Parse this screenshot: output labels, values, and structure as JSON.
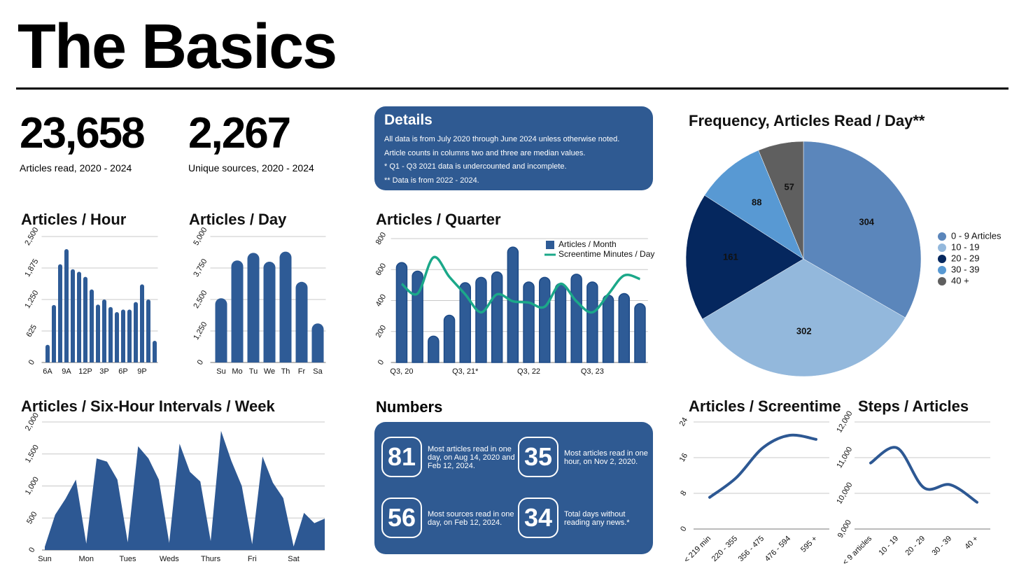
{
  "header": {
    "title": "The Basics"
  },
  "stats": [
    {
      "value": "23,658",
      "label": "Articles read, 2020 - 2024"
    },
    {
      "value": "2,267",
      "label": "Unique sources, 2020 - 2024"
    }
  ],
  "details": {
    "title": "Details",
    "lines": [
      "All data is from July 2020 through June 2024 unless otherwise noted.",
      "Article counts in columns two and three are median values.",
      "* Q1 - Q3 2021 data is undercounted and incomplete.",
      "** Data is from 2022 - 2024."
    ]
  },
  "numbers": {
    "title": "Numbers",
    "items": [
      {
        "value": 81,
        "text": "Most articles read in one day, on Aug 14, 2020 and Feb 12, 2024."
      },
      {
        "value": 35,
        "text": "Most articles read in one hour, on Nov 2, 2020."
      },
      {
        "value": 56,
        "text": "Most sources read in one day, on Feb 12, 2024."
      },
      {
        "value": 34,
        "text": "Total days without reading any news.*"
      }
    ]
  },
  "chart_data": [
    {
      "type": "bar",
      "title": "Articles / Hour",
      "color": "#2e5b96",
      "grid": true,
      "categories": [
        "6A",
        null,
        null,
        "9A",
        null,
        null,
        "12P",
        null,
        null,
        "3P",
        null,
        null,
        "6P",
        null,
        null,
        "9P",
        null,
        null
      ],
      "values": [
        350,
        1140,
        1950,
        2250,
        1850,
        1800,
        1700,
        1450,
        1150,
        1250,
        1100,
        1000,
        1050,
        1050,
        1200,
        1550,
        1250,
        430
      ],
      "ylim": [
        0,
        2500
      ],
      "yticks": [
        0,
        625,
        {
          "value": 1250,
          "label": "1,250"
        },
        {
          "value": 1875,
          "label": "1,875"
        },
        {
          "value": 2500,
          "label": "2,500"
        }
      ]
    },
    {
      "type": "bar",
      "title": "Articles / Day",
      "color": "#2e5b96",
      "grid": true,
      "categories": [
        "Su",
        "Mo",
        "Tu",
        "We",
        "Th",
        "Fr",
        "Sa"
      ],
      "values": [
        2550,
        4050,
        4350,
        4000,
        4400,
        3200,
        1550
      ],
      "ylim": [
        0,
        5000
      ],
      "yticks": [
        0,
        {
          "value": 1250,
          "label": "1,250"
        },
        {
          "value": 2500,
          "label": "2,500"
        },
        {
          "value": 3750,
          "label": "3,750"
        },
        {
          "value": 5000,
          "label": "5,000"
        }
      ]
    },
    {
      "type": "combo",
      "title": "Articles / Quarter",
      "grid": true,
      "legend": "upper right",
      "categories": [
        "Q3, 20",
        null,
        null,
        null,
        "Q3, 21*",
        null,
        null,
        null,
        "Q3, 22",
        null,
        null,
        null,
        "Q3, 23",
        null,
        null,
        null
      ],
      "series": [
        {
          "name": "Articles / Month",
          "type": "bar",
          "color": "#2e5b96",
          "values": [
            645,
            590,
            170,
            305,
            515,
            550,
            585,
            745,
            520,
            550,
            510,
            570,
            520,
            435,
            445,
            380
          ]
        },
        {
          "name": "Screentime Minutes / Day",
          "type": "line",
          "color": "#1ba889",
          "values": [
            508,
            445,
            679,
            553,
            440,
            324,
            440,
            395,
            387,
            360,
            508,
            395,
            324,
            440,
            562,
            539
          ]
        }
      ],
      "ylim": [
        0,
        800
      ],
      "yticks": [
        0,
        200,
        400,
        600,
        800
      ]
    },
    {
      "type": "area",
      "title": "Articles / Six-Hour Intervals / Week",
      "color": "#2d5893",
      "grid": true,
      "categories": [
        "Sun",
        null,
        null,
        null,
        "Mon",
        null,
        null,
        null,
        "Tues",
        null,
        null,
        null,
        "Weds",
        null,
        null,
        null,
        "Thurs",
        null,
        null,
        null,
        "Fri",
        null,
        null,
        null,
        "Sat",
        null,
        null,
        null
      ],
      "values": [
        50,
        550,
        800,
        1100,
        100,
        1430,
        1380,
        1100,
        120,
        1620,
        1430,
        1100,
        110,
        1660,
        1220,
        1070,
        140,
        1860,
        1390,
        1000,
        90,
        1460,
        1050,
        810,
        55,
        580,
        420,
        490
      ],
      "ylim": [
        0,
        2000
      ],
      "yticks": [
        0,
        500,
        {
          "value": 1000,
          "label": "1,000"
        },
        {
          "value": 1500,
          "label": "1,500"
        },
        {
          "value": 2000,
          "label": "2,000"
        }
      ]
    },
    {
      "type": "pie",
      "title": "Frequency, Articles Read / Day**",
      "legend": "right",
      "categories": [
        "0 - 9 Articles",
        "10 - 19",
        "20 - 29",
        "30 - 39",
        "40 +"
      ],
      "values": [
        304,
        302,
        161,
        88,
        57
      ],
      "colors": [
        "#5b86bb",
        "#93b8dc",
        "#05275e",
        "#5899d3",
        "#5f5f5f"
      ]
    },
    {
      "type": "line",
      "title": "Articles / Screentime",
      "color": "#2d5893",
      "grid": true,
      "categories": [
        "< 219 min",
        "220 - 355",
        "356 - 475",
        "476 - 594",
        "595 +"
      ],
      "values": [
        7.1,
        11.5,
        18.2,
        21,
        20.1
      ],
      "ylim": [
        0,
        24
      ],
      "yticks": [
        0,
        8,
        16,
        24
      ]
    },
    {
      "type": "line",
      "title": "Steps / Articles",
      "color": "#2d5893",
      "grid": true,
      "categories": [
        "< 9 articles",
        "10 - 19",
        "20 - 29",
        "30 - 39",
        "40 +"
      ],
      "values": [
        10850,
        11270,
        10160,
        10240,
        9750
      ],
      "ylim": [
        9000,
        12000
      ],
      "yticks": [
        {
          "value": 9000,
          "label": "9,000"
        },
        {
          "value": 10000,
          "label": "10,000"
        },
        {
          "value": 11000,
          "label": "11,000"
        },
        {
          "value": 12000,
          "label": "12,000"
        }
      ]
    }
  ]
}
